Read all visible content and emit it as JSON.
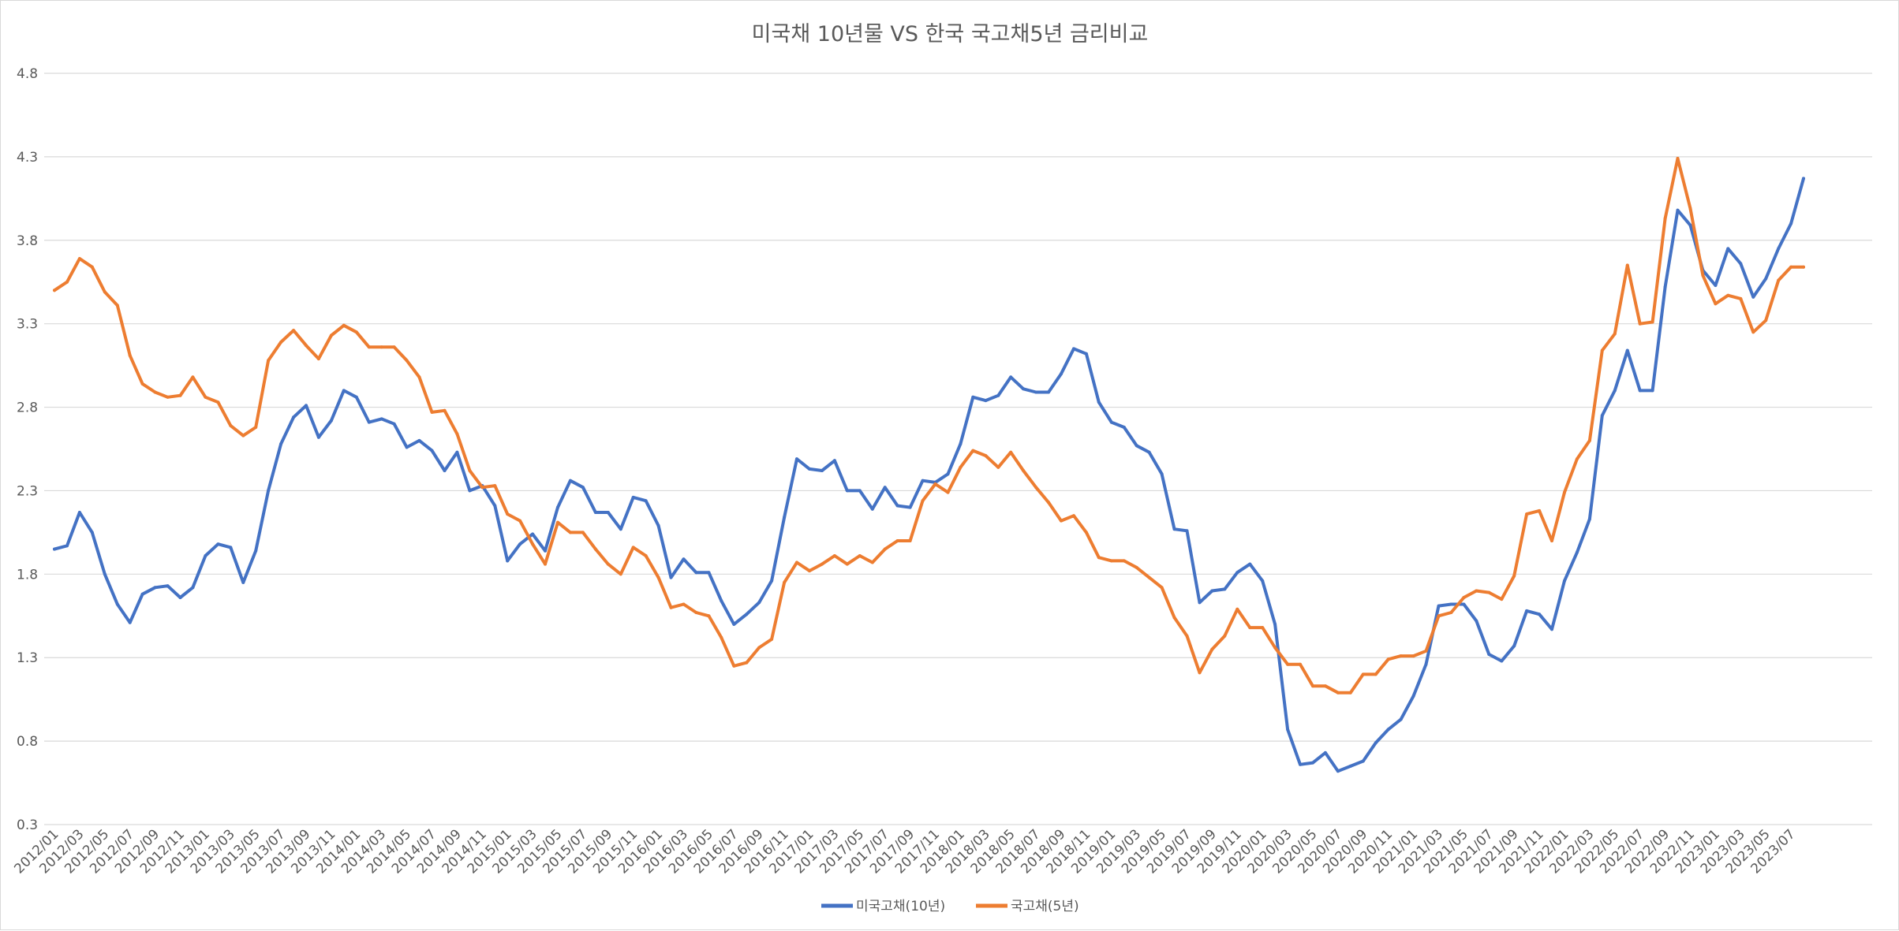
{
  "chart_data": {
    "type": "line",
    "title": "미국채 10년물 VS 한국 국고채5년 금리비교",
    "xlabel": "",
    "ylabel": "",
    "ylim": [
      0.3,
      4.8
    ],
    "yticks": [
      "0.3",
      "0.8",
      "1.3",
      "1.8",
      "2.3",
      "2.8",
      "3.3",
      "3.8",
      "4.3",
      "4.8"
    ],
    "grid": true,
    "legend_position": "bottom",
    "x": [
      "2012/01",
      "2012/02",
      "2012/03",
      "2012/04",
      "2012/05",
      "2012/06",
      "2012/07",
      "2012/08",
      "2012/09",
      "2012/10",
      "2012/11",
      "2012/12",
      "2013/01",
      "2013/02",
      "2013/03",
      "2013/04",
      "2013/05",
      "2013/06",
      "2013/07",
      "2013/08",
      "2013/09",
      "2013/10",
      "2013/11",
      "2013/12",
      "2014/01",
      "2014/02",
      "2014/03",
      "2014/04",
      "2014/05",
      "2014/06",
      "2014/07",
      "2014/08",
      "2014/09",
      "2014/10",
      "2014/11",
      "2014/12",
      "2015/01",
      "2015/02",
      "2015/03",
      "2015/04",
      "2015/05",
      "2015/06",
      "2015/07",
      "2015/08",
      "2015/09",
      "2015/10",
      "2015/11",
      "2015/12",
      "2016/01",
      "2016/02",
      "2016/03",
      "2016/04",
      "2016/05",
      "2016/06",
      "2016/07",
      "2016/08",
      "2016/09",
      "2016/10",
      "2016/11",
      "2016/12",
      "2017/01",
      "2017/02",
      "2017/03",
      "2017/04",
      "2017/05",
      "2017/06",
      "2017/07",
      "2017/08",
      "2017/09",
      "2017/10",
      "2017/11",
      "2017/12",
      "2018/01",
      "2018/02",
      "2018/03",
      "2018/04",
      "2018/05",
      "2018/06",
      "2018/07",
      "2018/08",
      "2018/09",
      "2018/10",
      "2018/11",
      "2018/12",
      "2019/01",
      "2019/02",
      "2019/03",
      "2019/04",
      "2019/05",
      "2019/06",
      "2019/07",
      "2019/08",
      "2019/09",
      "2019/10",
      "2019/11",
      "2019/12",
      "2020/01",
      "2020/02",
      "2020/03",
      "2020/04",
      "2020/05",
      "2020/06",
      "2020/07",
      "2020/08",
      "2020/09",
      "2020/10",
      "2020/11",
      "2020/12",
      "2021/01",
      "2021/02",
      "2021/03",
      "2021/04",
      "2021/05",
      "2021/06",
      "2021/07",
      "2021/08",
      "2021/09",
      "2021/10",
      "2021/11",
      "2021/12",
      "2022/01",
      "2022/02",
      "2022/03",
      "2022/04",
      "2022/05",
      "2022/06",
      "2022/07",
      "2022/08",
      "2022/09",
      "2022/10",
      "2022/11",
      "2022/12",
      "2023/01",
      "2023/02",
      "2023/03",
      "2023/04",
      "2023/05",
      "2023/06",
      "2023/07",
      "2023/08"
    ],
    "x_tick_labels": [
      "2012/01",
      "2012/03",
      "2012/05",
      "2012/07",
      "2012/09",
      "2012/11",
      "2013/01",
      "2013/03",
      "2013/05",
      "2013/07",
      "2013/09",
      "2013/11",
      "2014/01",
      "2014/03",
      "2014/05",
      "2014/07",
      "2014/09",
      "2014/11",
      "2015/01",
      "2015/03",
      "2015/05",
      "2015/07",
      "2015/09",
      "2015/11",
      "2016/01",
      "2016/03",
      "2016/05",
      "2016/07",
      "2016/09",
      "2016/11",
      "2017/01",
      "2017/03",
      "2017/05",
      "2017/07",
      "2017/09",
      "2017/11",
      "2018/01",
      "2018/03",
      "2018/05",
      "2018/07",
      "2018/09",
      "2018/11",
      "2019/01",
      "2019/03",
      "2019/05",
      "2019/07",
      "2019/09",
      "2019/11",
      "2020/01",
      "2020/03",
      "2020/05",
      "2020/07",
      "2020/09",
      "2020/11",
      "2021/01",
      "2021/03",
      "2021/05",
      "2021/07",
      "2021/09",
      "2021/11",
      "2022/01",
      "2022/03",
      "2022/05",
      "2022/07",
      "2022/09",
      "2022/11",
      "2023/01",
      "2023/03",
      "2023/05",
      "2023/07"
    ],
    "series": [
      {
        "name": "미국고채(10년)",
        "color": "#4472C4",
        "values": [
          1.95,
          1.97,
          2.17,
          2.05,
          1.8,
          1.62,
          1.51,
          1.68,
          1.72,
          1.73,
          1.66,
          1.72,
          1.91,
          1.98,
          1.96,
          1.75,
          1.94,
          2.3,
          2.58,
          2.74,
          2.81,
          2.62,
          2.72,
          2.9,
          2.86,
          2.71,
          2.73,
          2.7,
          2.56,
          2.6,
          2.54,
          2.42,
          2.53,
          2.3,
          2.33,
          2.21,
          1.88,
          1.98,
          2.04,
          1.94,
          2.2,
          2.36,
          2.32,
          2.17,
          2.17,
          2.07,
          2.26,
          2.24,
          2.09,
          1.78,
          1.89,
          1.81,
          1.81,
          1.64,
          1.5,
          1.56,
          1.63,
          1.76,
          2.14,
          2.49,
          2.43,
          2.42,
          2.48,
          2.3,
          2.3,
          2.19,
          2.32,
          2.21,
          2.2,
          2.36,
          2.35,
          2.4,
          2.58,
          2.86,
          2.84,
          2.87,
          2.98,
          2.91,
          2.89,
          2.89,
          3.0,
          3.15,
          3.12,
          2.83,
          2.71,
          2.68,
          2.57,
          2.53,
          2.4,
          2.07,
          2.06,
          1.63,
          1.7,
          1.71,
          1.81,
          1.86,
          1.76,
          1.5,
          0.87,
          0.66,
          0.67,
          0.73,
          0.62,
          0.65,
          0.68,
          0.79,
          0.87,
          0.93,
          1.07,
          1.26,
          1.61,
          1.62,
          1.62,
          1.52,
          1.32,
          1.28,
          1.37,
          1.58,
          1.56,
          1.47,
          1.76,
          1.93,
          2.13,
          2.75,
          2.9,
          3.14,
          2.9,
          2.9,
          3.52,
          3.98,
          3.89,
          3.62,
          3.53,
          3.75,
          3.66,
          3.46,
          3.57,
          3.75,
          3.9,
          4.17
        ]
      },
      {
        "name": "국고채(5년)",
        "color": "#ED7D31",
        "values": [
          3.5,
          3.55,
          3.69,
          3.64,
          3.49,
          3.41,
          3.11,
          2.94,
          2.89,
          2.86,
          2.87,
          2.98,
          2.86,
          2.83,
          2.69,
          2.63,
          2.68,
          3.08,
          3.19,
          3.26,
          3.17,
          3.09,
          3.23,
          3.29,
          3.25,
          3.16,
          3.16,
          3.16,
          3.08,
          2.98,
          2.77,
          2.78,
          2.64,
          2.42,
          2.32,
          2.33,
          2.16,
          2.12,
          1.98,
          1.86,
          2.11,
          2.05,
          2.05,
          1.95,
          1.86,
          1.8,
          1.96,
          1.91,
          1.78,
          1.6,
          1.62,
          1.57,
          1.55,
          1.42,
          1.25,
          1.27,
          1.36,
          1.41,
          1.75,
          1.87,
          1.82,
          1.86,
          1.91,
          1.86,
          1.91,
          1.87,
          1.95,
          2.0,
          2.0,
          2.24,
          2.34,
          2.29,
          2.44,
          2.54,
          2.51,
          2.44,
          2.53,
          2.42,
          2.32,
          2.23,
          2.12,
          2.15,
          2.05,
          1.9,
          1.88,
          1.88,
          1.84,
          1.78,
          1.72,
          1.54,
          1.43,
          1.21,
          1.35,
          1.43,
          1.59,
          1.48,
          1.48,
          1.36,
          1.26,
          1.26,
          1.13,
          1.13,
          1.09,
          1.09,
          1.2,
          1.2,
          1.29,
          1.31,
          1.31,
          1.34,
          1.55,
          1.57,
          1.66,
          1.7,
          1.69,
          1.65,
          1.79,
          2.16,
          2.18,
          2.0,
          2.29,
          2.49,
          2.6,
          3.14,
          3.24,
          3.65,
          3.3,
          3.31,
          3.93,
          4.29,
          3.99,
          3.59,
          3.42,
          3.47,
          3.45,
          3.25,
          3.32,
          3.56,
          3.64,
          3.64
        ]
      }
    ]
  }
}
